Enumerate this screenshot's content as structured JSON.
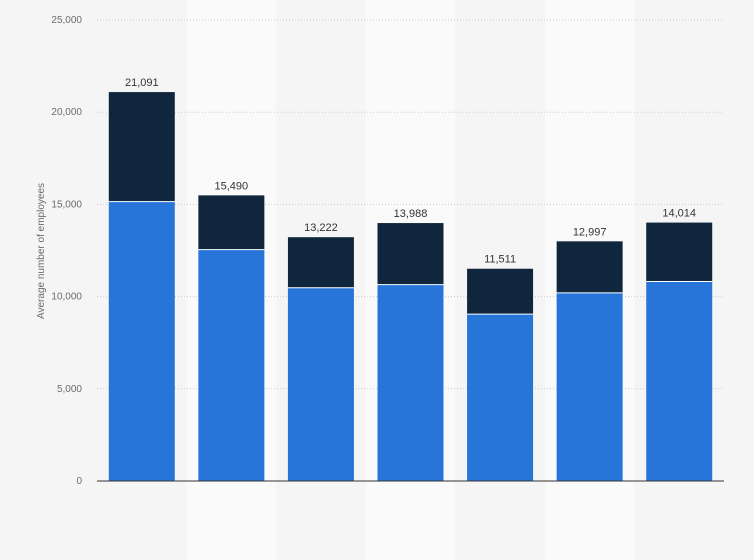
{
  "chart_data": {
    "type": "bar",
    "stacked": true,
    "categories": [
      "",
      "",
      "",
      "",
      "",
      "",
      ""
    ],
    "series": [
      {
        "values": [
          15150,
          12550,
          10480,
          10650,
          9050,
          10200,
          10820
        ]
      },
      {
        "values": [
          5941,
          2940,
          2742,
          3338,
          2461,
          2797,
          3194
        ]
      }
    ],
    "totals": [
      21091,
      15490,
      13222,
      13988,
      11511,
      12997,
      14014
    ],
    "total_labels": [
      "21,091",
      "15,490",
      "13,222",
      "13,988",
      "11,511",
      "12,997",
      "14,014"
    ],
    "ylabel": "Average number of employees",
    "xlabel": "",
    "ylim": [
      0,
      25000
    ],
    "yticks": [
      0,
      5000,
      10000,
      15000,
      20000,
      25000
    ],
    "ytick_labels": [
      "0",
      "5,000",
      "10,000",
      "15,000",
      "20,000",
      "25,000"
    ],
    "grid": true,
    "legend": "none"
  },
  "colors": {
    "series": [
      "#2775d9",
      "#10263d"
    ],
    "background": "#f5f5f5",
    "alt_band": "#fafafa",
    "grid": "#cccccc",
    "axis": "#333333"
  }
}
